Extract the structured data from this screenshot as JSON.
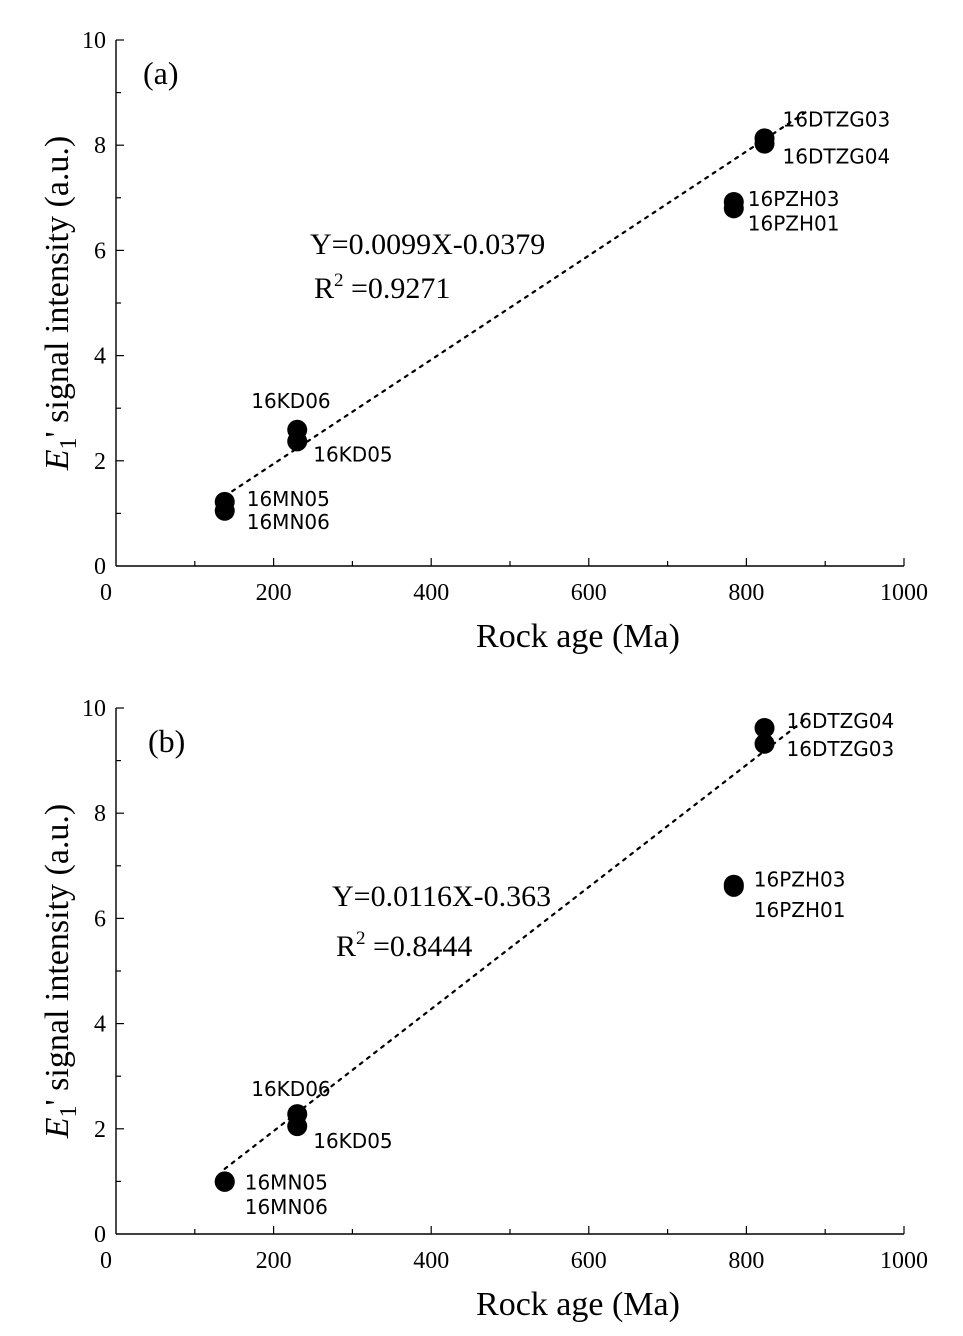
{
  "chart_data": [
    {
      "type": "scatter",
      "panel_label": "(a)",
      "xlabel": "Rock age (Ma)",
      "ylabel_italic": "E",
      "ylabel_sub": "1",
      "ylabel_rest": "' signal intensity (a.u.)",
      "xlim": [
        0,
        1000
      ],
      "ylim": [
        0,
        10
      ],
      "x_ticks": [
        "0",
        "200",
        "400",
        "600",
        "800",
        "1000"
      ],
      "y_ticks": [
        "0",
        "2",
        "4",
        "6",
        "8",
        "10"
      ],
      "equation": "Y=0.0099X-0.0379",
      "r2_prefix": "R",
      "r2_sup": "2",
      "r2_value": " =0.9271",
      "fit": {
        "slope": 0.0099,
        "intercept": -0.0379,
        "x_range": [
          138,
          877
        ]
      },
      "points": [
        {
          "label": "16DTZG03",
          "x": 823,
          "y": 8.13
        },
        {
          "label": "16DTZG04",
          "x": 823,
          "y": 8.03
        },
        {
          "label": "16PZH03",
          "x": 784,
          "y": 6.92
        },
        {
          "label": "16PZH01",
          "x": 784,
          "y": 6.8
        },
        {
          "label": "16KD06",
          "x": 230,
          "y": 2.59
        },
        {
          "label": "16KD05",
          "x": 230,
          "y": 2.37
        },
        {
          "label": "16MN05",
          "x": 138,
          "y": 1.22
        },
        {
          "label": "16MN06",
          "x": 138,
          "y": 1.05
        }
      ]
    },
    {
      "type": "scatter",
      "panel_label": "(b)",
      "xlabel": "Rock age (Ma)",
      "ylabel_italic": "E",
      "ylabel_sub": "1",
      "ylabel_rest": "' signal intensity (a.u.)",
      "xlim": [
        0,
        1000
      ],
      "ylim": [
        0,
        10
      ],
      "x_ticks": [
        "0",
        "200",
        "400",
        "600",
        "800",
        "1000"
      ],
      "y_ticks": [
        "0",
        "2",
        "4",
        "6",
        "8",
        "10"
      ],
      "equation": "Y=0.0116X-0.363",
      "r2_prefix": "R",
      "r2_sup": "2",
      "r2_value": " =0.8444",
      "fit": {
        "slope": 0.0116,
        "intercept": -0.363,
        "x_range": [
          138,
          877
        ]
      },
      "points": [
        {
          "label": "16DTZG04",
          "x": 823,
          "y": 9.62
        },
        {
          "label": "16DTZG03",
          "x": 823,
          "y": 9.32
        },
        {
          "label": "16PZH03",
          "x": 784,
          "y": 6.64
        },
        {
          "label": "16PZH01",
          "x": 784,
          "y": 6.6
        },
        {
          "label": "16KD06",
          "x": 230,
          "y": 2.28
        },
        {
          "label": "16KD05",
          "x": 230,
          "y": 2.05
        },
        {
          "label": "16MN05",
          "x": 138,
          "y": 1.0
        },
        {
          "label": "16MN06",
          "x": 138,
          "y": 0.99
        }
      ]
    }
  ]
}
